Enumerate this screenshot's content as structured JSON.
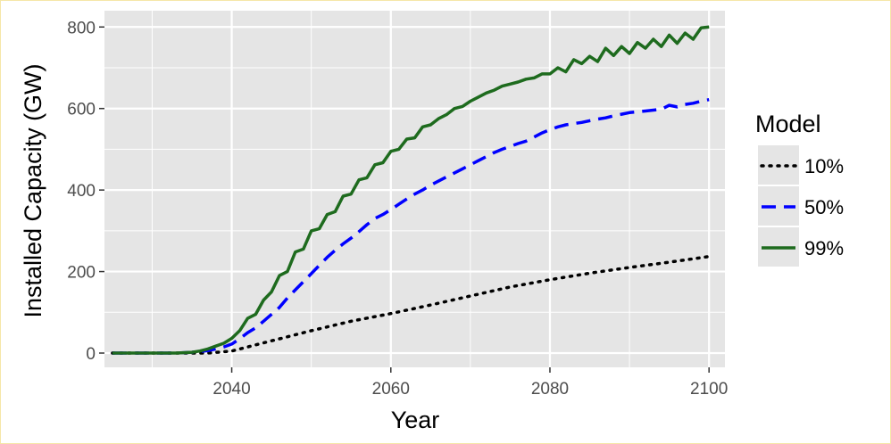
{
  "chart_data": {
    "type": "line",
    "title": "",
    "xlabel": "Year",
    "ylabel": "Installed Capacity (GW)",
    "xlim": [
      2024,
      2102
    ],
    "ylim": [
      -35,
      840
    ],
    "xticks": [
      2040,
      2060,
      2080,
      2100
    ],
    "xtick_labels": [
      "2040",
      "2060",
      "2080",
      "2100"
    ],
    "yticks": [
      0,
      200,
      400,
      600,
      800
    ],
    "ytick_labels": [
      "0",
      "200",
      "400",
      "600",
      "800"
    ],
    "grid": true,
    "legend": {
      "title": "Model",
      "position": "right"
    },
    "colors": {
      "panel": "#e5e5e5",
      "grid": "#ffffff"
    },
    "series": [
      {
        "name": "10%",
        "color": "#000000",
        "dash": "dotted",
        "x": [
          2025,
          2035,
          2037,
          2040,
          2045,
          2050,
          2055,
          2060,
          2065,
          2070,
          2075,
          2080,
          2085,
          2090,
          2095,
          2100
        ],
        "y": [
          0,
          0,
          0,
          5,
          30,
          55,
          78,
          97,
          118,
          140,
          162,
          180,
          196,
          210,
          223,
          237
        ]
      },
      {
        "name": "50%",
        "color": "#0000ff",
        "dash": "dashed",
        "x": [
          2025,
          2030,
          2033,
          2035,
          2036,
          2037,
          2038,
          2039,
          2040,
          2041,
          2042,
          2043,
          2044,
          2045,
          2046,
          2047,
          2048,
          2049,
          2050,
          2051,
          2052,
          2053,
          2054,
          2055,
          2056,
          2057,
          2058,
          2059,
          2060,
          2061,
          2062,
          2063,
          2064,
          2065,
          2066,
          2067,
          2068,
          2069,
          2070,
          2071,
          2072,
          2073,
          2074,
          2075,
          2076,
          2077,
          2078,
          2079,
          2080,
          2081,
          2082,
          2083,
          2084,
          2085,
          2086,
          2087,
          2088,
          2089,
          2090,
          2091,
          2092,
          2093,
          2094,
          2095,
          2096,
          2097,
          2098,
          2099,
          2100
        ],
        "y": [
          0,
          0,
          0,
          2,
          4,
          6,
          10,
          15,
          22,
          35,
          50,
          62,
          78,
          95,
          112,
          135,
          155,
          175,
          195,
          215,
          235,
          252,
          268,
          282,
          298,
          315,
          330,
          340,
          352,
          365,
          378,
          390,
          400,
          412,
          422,
          432,
          442,
          452,
          462,
          472,
          482,
          492,
          500,
          507,
          514,
          520,
          530,
          540,
          548,
          555,
          560,
          563,
          566,
          570,
          574,
          577,
          582,
          586,
          590,
          592,
          594,
          596,
          598,
          608,
          604,
          610,
          613,
          618,
          622
        ]
      },
      {
        "name": "99%",
        "color": "#1e6b1e",
        "dash": "solid",
        "x": [
          2025,
          2030,
          2033,
          2035,
          2036,
          2037,
          2038,
          2039,
          2040,
          2041,
          2042,
          2043,
          2044,
          2045,
          2046,
          2047,
          2048,
          2049,
          2050,
          2051,
          2052,
          2053,
          2054,
          2055,
          2056,
          2057,
          2058,
          2059,
          2060,
          2061,
          2062,
          2063,
          2064,
          2065,
          2066,
          2067,
          2068,
          2069,
          2070,
          2071,
          2072,
          2073,
          2074,
          2075,
          2076,
          2077,
          2078,
          2079,
          2080,
          2081,
          2082,
          2083,
          2084,
          2085,
          2086,
          2087,
          2088,
          2089,
          2090,
          2091,
          2092,
          2093,
          2094,
          2095,
          2096,
          2097,
          2098,
          2099,
          2100
        ],
        "y": [
          0,
          0,
          0,
          2,
          5,
          10,
          17,
          24,
          36,
          55,
          85,
          95,
          130,
          150,
          190,
          200,
          248,
          255,
          300,
          305,
          340,
          347,
          385,
          390,
          425,
          430,
          462,
          467,
          495,
          500,
          525,
          528,
          555,
          560,
          575,
          585,
          600,
          605,
          618,
          628,
          638,
          645,
          655,
          660,
          665,
          672,
          675,
          685,
          685,
          700,
          690,
          720,
          710,
          728,
          715,
          748,
          730,
          752,
          735,
          762,
          748,
          770,
          752,
          780,
          760,
          785,
          770,
          798,
          800
        ]
      }
    ]
  }
}
